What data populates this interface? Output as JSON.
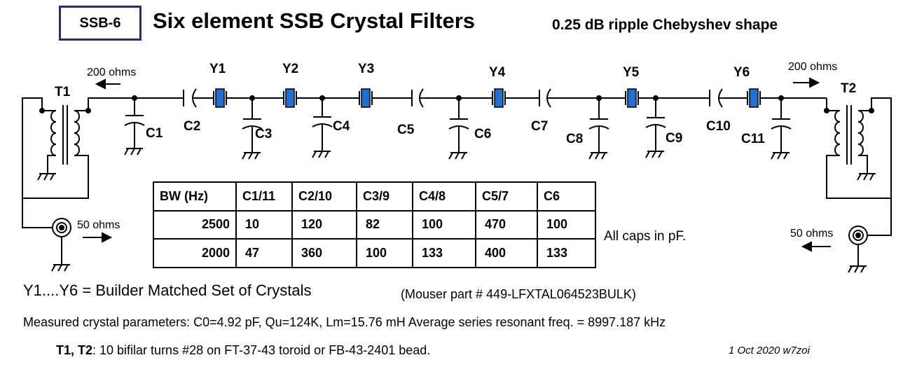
{
  "header": {
    "badge": "SSB-6",
    "title": "Six element SSB Crystal Filters",
    "subtitle": "0.25 dB ripple Chebyshev shape"
  },
  "schematic": {
    "transformers": [
      "T1",
      "T2"
    ],
    "crystals": [
      "Y1",
      "Y2",
      "Y3",
      "Y4",
      "Y5",
      "Y6"
    ],
    "capacitors": [
      "C1",
      "C2",
      "C3",
      "C4",
      "C5",
      "C6",
      "C7",
      "C8",
      "C9",
      "C10",
      "C11"
    ],
    "impedance_left_top": "200 ohms",
    "impedance_right_top": "200 ohms",
    "impedance_left_bottom": "50 ohms",
    "impedance_right_bottom": "50 ohms",
    "crystal_color": "#1f6fd6"
  },
  "table": {
    "headers": [
      "BW (Hz)",
      "C1/11",
      "C2/10",
      "C3/9",
      "C4/8",
      "C5/7",
      "C6"
    ],
    "rows": [
      [
        "2500",
        "10",
        "120",
        "82",
        "100",
        "470",
        "100"
      ],
      [
        "2000",
        "47",
        "360",
        "100",
        "133",
        "400",
        "133"
      ]
    ]
  },
  "notes": {
    "caps_unit": "All caps in pF.",
    "crystals": "Y1....Y6 = Builder Matched Set of Crystals",
    "mouser": "(Mouser part # 449-LFXTAL064523BULK)",
    "measured": "Measured crystal parameters:   C0=4.92 pF, Qu=124K,  Lm=15.76 mH   Average series resonant freq. = 8997.187 kHz",
    "transformers_label": "T1, T2",
    "transformers_text": ": 10  bifilar turns #28 on FT-37-43 toroid or FB-43-2401 bead.",
    "date": "1 Oct 2020  w7zoi"
  }
}
